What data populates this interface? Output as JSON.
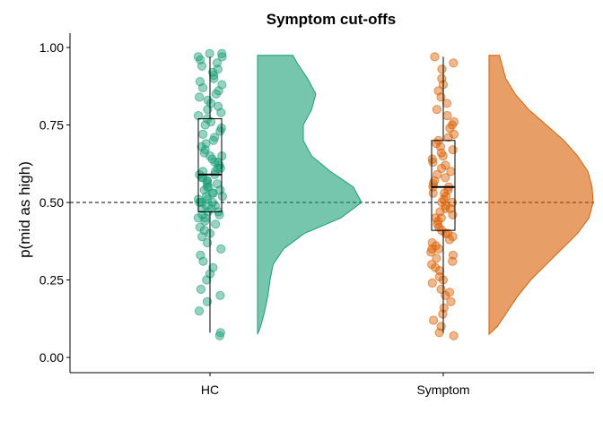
{
  "chart_data": {
    "type": "raincloud",
    "title": "Symptom cut-offs",
    "xlabel": "",
    "ylabel": "p(mid as high)",
    "categories": [
      "HC",
      "Symptom"
    ],
    "ylim": [
      -0.05,
      1.05
    ],
    "yticks": [
      0.0,
      0.25,
      0.5,
      0.75,
      1.0
    ],
    "ytick_labels": [
      "0.00",
      "0.25",
      "0.50",
      "0.75",
      "1.00"
    ],
    "reference_line": {
      "y": 0.5,
      "style": "dashed"
    },
    "grid": false,
    "legend": "none",
    "colors": {
      "HC": "#1b9e77",
      "Symptom": "#d95f02"
    },
    "series": [
      {
        "category": "HC",
        "box": {
          "min": 0.08,
          "q1": 0.47,
          "median": 0.59,
          "q3": 0.77,
          "max": 0.97
        },
        "density": {
          "y": [
            0.075,
            0.1,
            0.15,
            0.2,
            0.25,
            0.3,
            0.35,
            0.4,
            0.45,
            0.5,
            0.55,
            0.6,
            0.65,
            0.7,
            0.75,
            0.8,
            0.85,
            0.9,
            0.95,
            0.975
          ],
          "d": [
            0.0,
            0.03,
            0.07,
            0.1,
            0.12,
            0.15,
            0.25,
            0.45,
            0.8,
            1.0,
            0.92,
            0.7,
            0.52,
            0.44,
            0.44,
            0.52,
            0.56,
            0.48,
            0.38,
            0.34
          ]
        },
        "points": [
          0.07,
          0.08,
          0.15,
          0.18,
          0.2,
          0.22,
          0.25,
          0.27,
          0.29,
          0.31,
          0.33,
          0.35,
          0.37,
          0.39,
          0.4,
          0.41,
          0.42,
          0.43,
          0.44,
          0.45,
          0.45,
          0.46,
          0.46,
          0.47,
          0.47,
          0.48,
          0.48,
          0.49,
          0.49,
          0.5,
          0.5,
          0.5,
          0.51,
          0.51,
          0.52,
          0.52,
          0.53,
          0.53,
          0.54,
          0.54,
          0.55,
          0.55,
          0.56,
          0.56,
          0.57,
          0.57,
          0.58,
          0.58,
          0.59,
          0.59,
          0.6,
          0.6,
          0.61,
          0.61,
          0.62,
          0.63,
          0.63,
          0.64,
          0.65,
          0.65,
          0.66,
          0.67,
          0.68,
          0.69,
          0.7,
          0.71,
          0.72,
          0.73,
          0.74,
          0.75,
          0.76,
          0.77,
          0.78,
          0.79,
          0.8,
          0.81,
          0.82,
          0.83,
          0.84,
          0.85,
          0.86,
          0.87,
          0.88,
          0.89,
          0.9,
          0.91,
          0.92,
          0.93,
          0.94,
          0.95,
          0.96,
          0.97,
          0.97,
          0.98,
          0.98
        ]
      },
      {
        "category": "Symptom",
        "box": {
          "min": 0.08,
          "q1": 0.41,
          "median": 0.55,
          "q3": 0.7,
          "max": 0.97
        },
        "density": {
          "y": [
            0.075,
            0.1,
            0.15,
            0.2,
            0.25,
            0.3,
            0.35,
            0.4,
            0.45,
            0.5,
            0.55,
            0.6,
            0.65,
            0.7,
            0.75,
            0.8,
            0.85,
            0.9,
            0.95,
            0.975
          ],
          "d": [
            0.0,
            0.08,
            0.18,
            0.28,
            0.4,
            0.55,
            0.7,
            0.85,
            0.96,
            1.0,
            0.99,
            0.95,
            0.85,
            0.72,
            0.55,
            0.38,
            0.25,
            0.16,
            0.12,
            0.1
          ]
        },
        "points": [
          0.07,
          0.08,
          0.1,
          0.12,
          0.14,
          0.16,
          0.18,
          0.2,
          0.21,
          0.22,
          0.24,
          0.25,
          0.26,
          0.28,
          0.29,
          0.3,
          0.31,
          0.32,
          0.33,
          0.34,
          0.35,
          0.35,
          0.36,
          0.37,
          0.38,
          0.39,
          0.4,
          0.4,
          0.41,
          0.42,
          0.43,
          0.44,
          0.45,
          0.45,
          0.46,
          0.47,
          0.48,
          0.48,
          0.49,
          0.5,
          0.5,
          0.51,
          0.52,
          0.53,
          0.53,
          0.54,
          0.55,
          0.55,
          0.56,
          0.57,
          0.58,
          0.59,
          0.6,
          0.61,
          0.62,
          0.63,
          0.64,
          0.65,
          0.66,
          0.67,
          0.68,
          0.69,
          0.7,
          0.71,
          0.72,
          0.74,
          0.75,
          0.76,
          0.78,
          0.8,
          0.82,
          0.84,
          0.86,
          0.88,
          0.9,
          0.93,
          0.95,
          0.97
        ]
      }
    ]
  }
}
